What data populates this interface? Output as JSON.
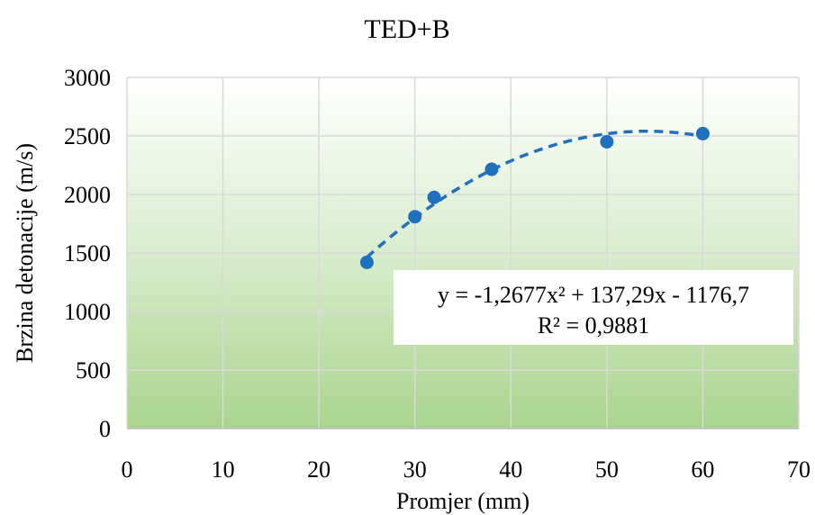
{
  "chart_data": {
    "type": "scatter",
    "title": "TED+B",
    "xlabel": "Promjer (mm)",
    "ylabel": "Brzina detonacije (m/s)",
    "xlim": [
      0,
      70
    ],
    "ylim": [
      0,
      3000
    ],
    "xticks": [
      0,
      10,
      20,
      30,
      40,
      50,
      60,
      70
    ],
    "yticks": [
      0,
      500,
      1000,
      1500,
      2000,
      2500,
      3000
    ],
    "grid": true,
    "plot_background": "gradient white-to-green",
    "series": [
      {
        "x": [
          25,
          30,
          32,
          38,
          50,
          60
        ],
        "y": [
          1420,
          1810,
          1975,
          2215,
          2450,
          2520
        ],
        "color": "#1f6fbf",
        "marker": "circle"
      }
    ],
    "trendline": {
      "type": "polynomial",
      "order": 2,
      "coefficients": [
        -1.2677,
        137.29,
        -1176.7
      ],
      "x_range": [
        25,
        60
      ],
      "style": "dashed",
      "color": "#1f6fbf",
      "equation_label": "y = -1,2677x² + 137,29x - 1176,7",
      "r2_label": "R² = 0,9881"
    }
  }
}
